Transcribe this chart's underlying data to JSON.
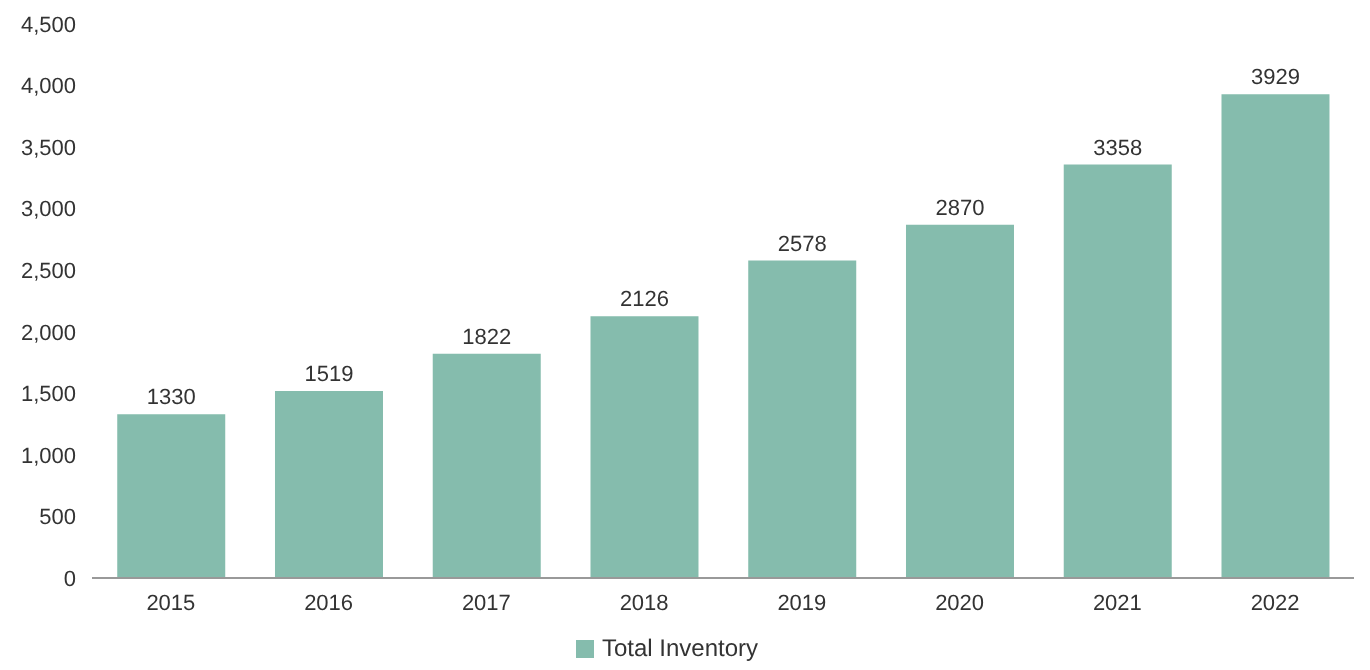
{
  "chart_data": {
    "type": "bar",
    "categories": [
      "2015",
      "2016",
      "2017",
      "2018",
      "2019",
      "2020",
      "2021",
      "2022"
    ],
    "series": [
      {
        "name": "Total Inventory",
        "color": "#85bcad",
        "values": [
          1330,
          1519,
          1822,
          2126,
          2578,
          2870,
          3358,
          3929
        ]
      }
    ],
    "ylim": [
      0,
      4500
    ],
    "yticks": [
      {
        "value": 0,
        "label": "0"
      },
      {
        "value": 500,
        "label": "500"
      },
      {
        "value": 1000,
        "label": "1,000"
      },
      {
        "value": 1500,
        "label": "1,500"
      },
      {
        "value": 2000,
        "label": "2,000"
      },
      {
        "value": 2500,
        "label": "2,500"
      },
      {
        "value": 3000,
        "label": "3,000"
      },
      {
        "value": 3500,
        "label": "3,500"
      },
      {
        "value": 4000,
        "label": "4,000"
      },
      {
        "value": 4500,
        "label": "4,500"
      }
    ],
    "data_labels": true,
    "legend": "bottom",
    "grid": false
  }
}
